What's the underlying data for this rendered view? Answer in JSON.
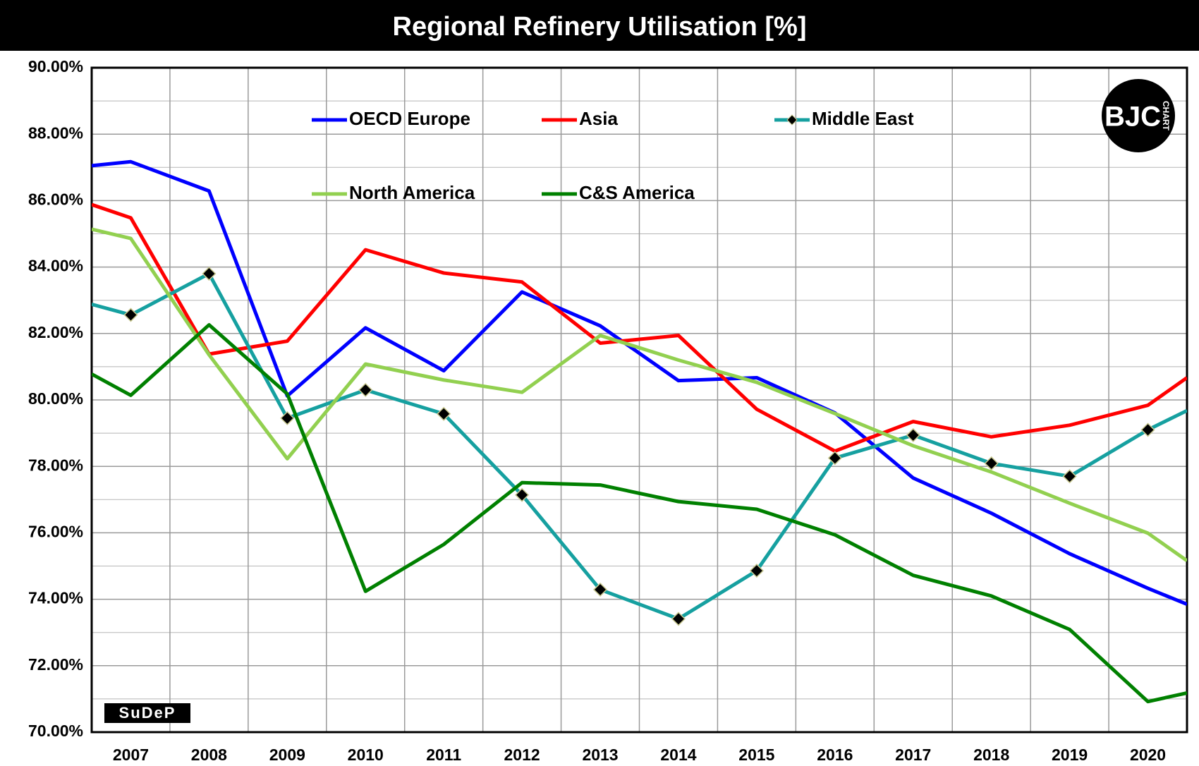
{
  "chart_data": {
    "type": "line",
    "title": "Regional Refinery Utilisation [%]",
    "x": [
      2006.5,
      2007,
      2008,
      2009,
      2010,
      2011,
      2012,
      2013,
      2014,
      2015,
      2016,
      2017,
      2018,
      2019,
      2020,
      2020.5
    ],
    "xlim": [
      2006.5,
      2020.5
    ],
    "xticks": [
      2007,
      2008,
      2009,
      2010,
      2011,
      2012,
      2013,
      2014,
      2015,
      2016,
      2017,
      2018,
      2019,
      2020
    ],
    "ylim": [
      70,
      90
    ],
    "yticks": [
      {
        "value": 70,
        "label": "70.00%"
      },
      {
        "value": 72,
        "label": "72.00%"
      },
      {
        "value": 74,
        "label": "74.00%"
      },
      {
        "value": 76,
        "label": "76.00%"
      },
      {
        "value": 78,
        "label": "78.00%"
      },
      {
        "value": 80,
        "label": "80.00%"
      },
      {
        "value": 82,
        "label": "82.00%"
      },
      {
        "value": 84,
        "label": "84.00%"
      },
      {
        "value": 86,
        "label": "86.00%"
      },
      {
        "value": 88,
        "label": "88.00%"
      },
      {
        "value": 90,
        "label": "90.00%"
      }
    ],
    "grid": true,
    "series": [
      {
        "name": "OECD Europe",
        "color": "#0000ff",
        "values": [
          87.05,
          87.17,
          86.29,
          80.12,
          82.17,
          80.88,
          83.25,
          82.23,
          80.58,
          80.67,
          79.61,
          77.65,
          76.59,
          75.37,
          74.33,
          73.85
        ]
      },
      {
        "name": "Asia",
        "color": "#ff0000",
        "values": [
          85.88,
          85.48,
          81.38,
          81.77,
          84.52,
          83.82,
          83.55,
          81.71,
          81.94,
          79.72,
          78.46,
          79.35,
          78.89,
          79.24,
          79.84,
          80.67
        ]
      },
      {
        "name": "Middle East",
        "color": "#16a0a0",
        "marker": "diamond",
        "values": [
          82.88,
          82.56,
          83.8,
          79.45,
          80.3,
          79.58,
          77.14,
          74.29,
          73.41,
          74.86,
          78.25,
          78.94,
          78.09,
          77.7,
          79.1,
          79.68
        ]
      },
      {
        "name": "North America",
        "color": "#92d050",
        "values": [
          85.14,
          84.86,
          81.36,
          78.23,
          81.08,
          80.6,
          80.23,
          81.94,
          81.2,
          80.53,
          79.59,
          78.62,
          77.83,
          76.89,
          75.99,
          75.16
        ]
      },
      {
        "name": "C&S America",
        "color": "#008000",
        "values": [
          80.78,
          80.14,
          82.26,
          80.18,
          74.24,
          75.65,
          77.51,
          77.44,
          76.94,
          76.71,
          75.94,
          74.72,
          74.1,
          73.09,
          70.92,
          71.18
        ]
      }
    ],
    "logos": [
      "BJC",
      "CHART",
      "SuDeP"
    ]
  }
}
